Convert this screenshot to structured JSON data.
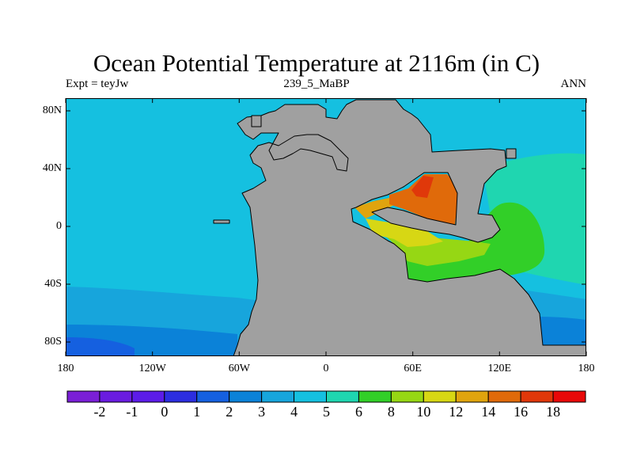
{
  "title": "Ocean Potential Temperature at 2116m (in C)",
  "subtitle_left": "Expt = teyJw",
  "subtitle_center": "239_5_MaBP",
  "subtitle_right": "ANN",
  "lat_ticks": [
    "80N",
    "40N",
    "0",
    "40S",
    "80S"
  ],
  "lon_ticks": [
    "180",
    "120W",
    "60W",
    "0",
    "60E",
    "120E",
    "180"
  ],
  "colorbar": {
    "labels": [
      "-2",
      "-1",
      "0",
      "1",
      "2",
      "3",
      "4",
      "5",
      "6",
      "8",
      "10",
      "12",
      "14",
      "16",
      "18"
    ],
    "colors": [
      "#7a1fd6",
      "#6a1ce0",
      "#5c1ce8",
      "#2c2ee0",
      "#1560e0",
      "#0b82d8",
      "#17a5dc",
      "#15c0e0",
      "#1fd6b0",
      "#32cf28",
      "#96d714",
      "#d7d714",
      "#e0a40e",
      "#e06a0a",
      "#e0380a",
      "#e80808"
    ]
  },
  "land_color": "#a0a0a0",
  "ocean_base_color": "#15c0e0"
}
